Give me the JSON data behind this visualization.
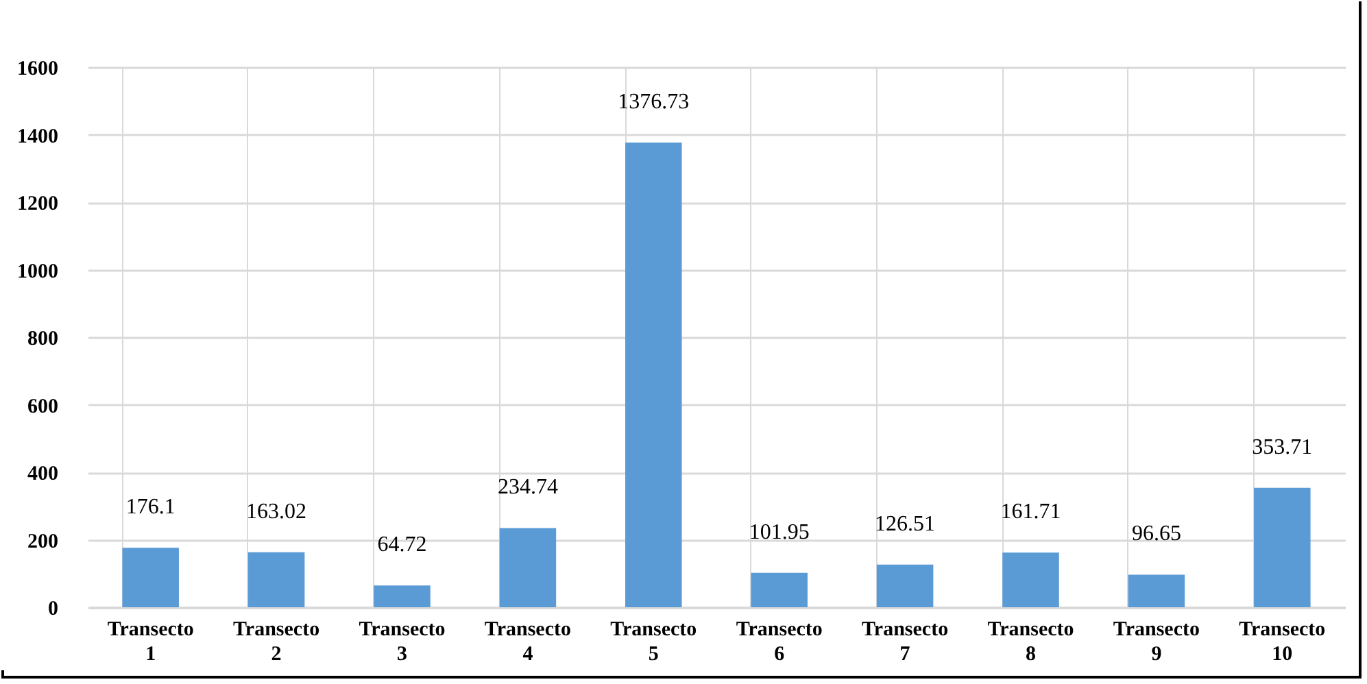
{
  "chart_data": {
    "type": "bar",
    "categories": [
      "Transecto 1",
      "Transecto 2",
      "Transecto 3",
      "Transecto 4",
      "Transecto 5",
      "Transecto 6",
      "Transecto 7",
      "Transecto 8",
      "Transecto 9",
      "Transecto 10"
    ],
    "values": [
      176.1,
      163.02,
      64.72,
      234.74,
      1376.73,
      101.95,
      126.51,
      161.71,
      96.65,
      353.71
    ],
    "color": "#5b9bd5",
    "ylim": [
      0,
      1600
    ],
    "yticks": [
      0,
      200,
      400,
      600,
      800,
      1000,
      1200,
      1400,
      1600
    ],
    "grid": true,
    "data_labels": true
  }
}
